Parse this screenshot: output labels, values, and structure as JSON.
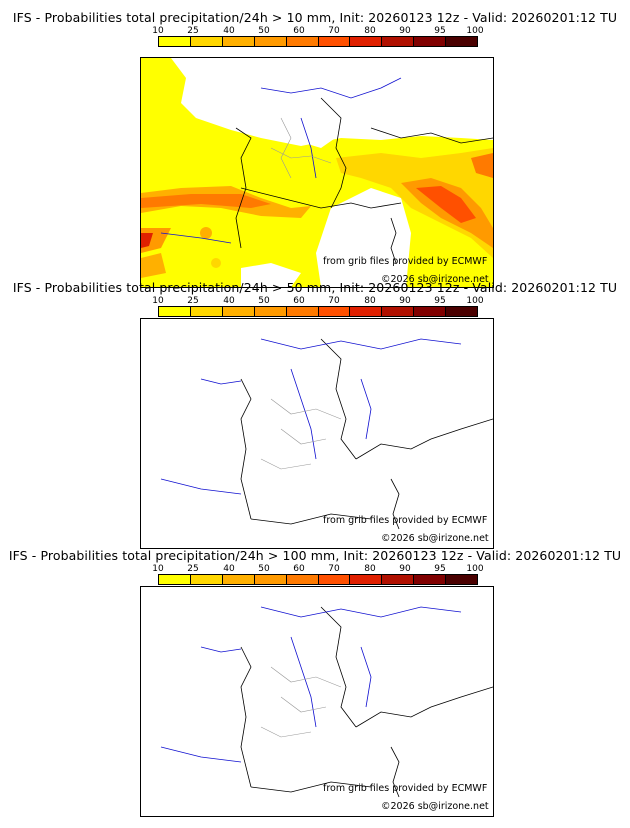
{
  "legend_ticks": [
    "10",
    "25",
    "40",
    "50",
    "60",
    "70",
    "80",
    "90",
    "95",
    "100"
  ],
  "legend_colors": [
    "#ffff00",
    "#ffd700",
    "#ffb000",
    "#ff9a00",
    "#ff7a00",
    "#ff5000",
    "#e02000",
    "#b01000",
    "#800000",
    "#4a0000"
  ],
  "panels": [
    {
      "title": "IFS - Probabilities total precipitation/24h > 10 mm, Init: 20260123 12z - Valid: 20260201:12 TU",
      "credit_source": "from grib files provided by ECMWF",
      "credit_copyright": "©2026 sb@irizone.net",
      "has_precip_shading": true
    },
    {
      "title": "IFS - Probabilities total precipitation/24h > 50 mm, Init: 20260123 12z - Valid: 20260201:12 TU",
      "credit_source": "from grib files provided by ECMWF",
      "credit_copyright": "©2026 sb@irizone.net",
      "has_precip_shading": false
    },
    {
      "title": "IFS - Probabilities total precipitation/24h > 100 mm, Init: 20260123 12z - Valid: 20260201:12 TU",
      "credit_source": "from grib files provided by ECMWF",
      "credit_copyright": "©2026 sb@irizone.net",
      "has_precip_shading": false
    }
  ]
}
